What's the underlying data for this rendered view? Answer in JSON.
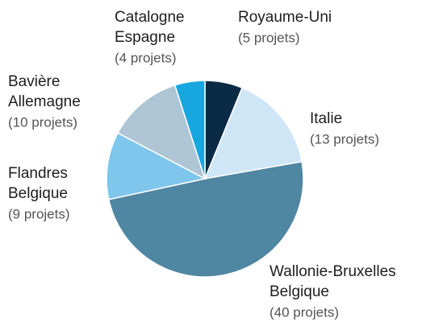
{
  "chart_data": {
    "type": "pie",
    "categories": [
      [
        "Royaume-Uni"
      ],
      [
        "Italie"
      ],
      [
        "Wallonie-Bruxelles",
        "Belgique"
      ],
      [
        "Flandres",
        "Belgique"
      ],
      [
        "Bavière",
        "Allemagne"
      ],
      [
        "Catalogne",
        "Espagne"
      ]
    ],
    "values": [
      5,
      13,
      40,
      9,
      10,
      4
    ],
    "value_labels": [
      "(5 projets)",
      "(13 projets)",
      "(40 projets)",
      "(9 projets)",
      "(10 projets)",
      "(4 projets)"
    ],
    "colors": [
      "#0b2a45",
      "#cfe6f7",
      "#4f86a2",
      "#7fc6ec",
      "#aec5d5",
      "#17a6df"
    ]
  }
}
